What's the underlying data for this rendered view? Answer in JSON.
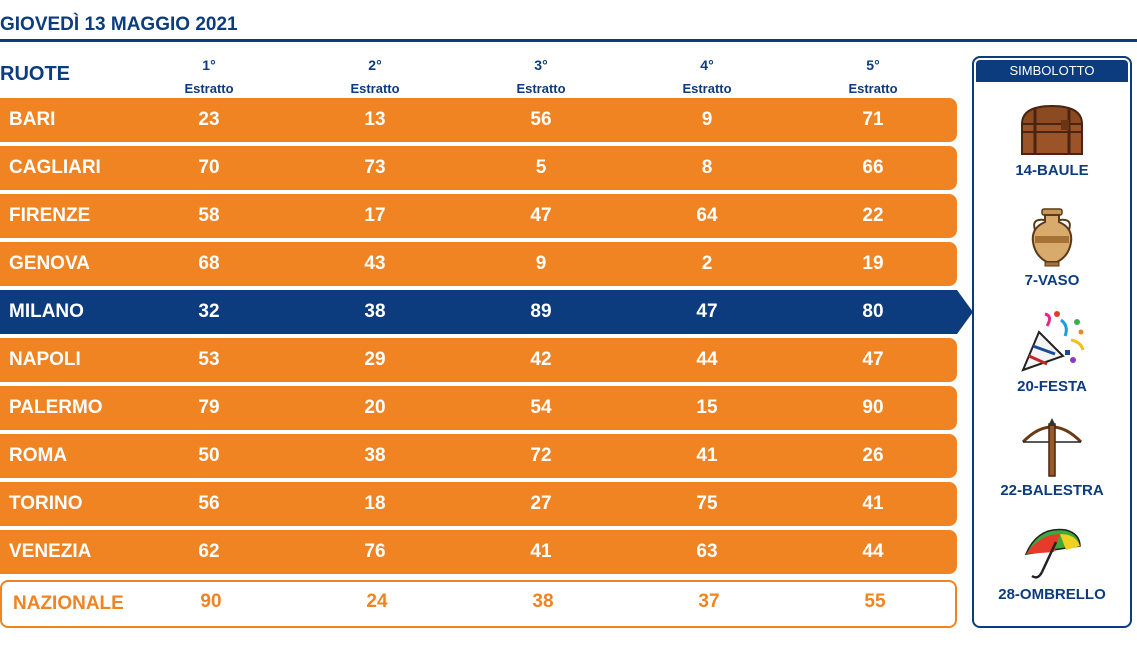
{
  "header": {
    "title": "GIOVEDÌ 13 MAGGIO 2021"
  },
  "table": {
    "ruote_label": "RUOTE",
    "columns": [
      {
        "n": "1°",
        "e": "Estratto"
      },
      {
        "n": "2°",
        "e": "Estratto"
      },
      {
        "n": "3°",
        "e": "Estratto"
      },
      {
        "n": "4°",
        "e": "Estratto"
      },
      {
        "n": "5°",
        "e": "Estratto"
      }
    ],
    "rows": [
      {
        "city": "BARI",
        "values": [
          "23",
          "13",
          "56",
          "9",
          "71"
        ]
      },
      {
        "city": "CAGLIARI",
        "values": [
          "70",
          "73",
          "5",
          "8",
          "66"
        ]
      },
      {
        "city": "FIRENZE",
        "values": [
          "58",
          "17",
          "47",
          "64",
          "22"
        ]
      },
      {
        "city": "GENOVA",
        "values": [
          "68",
          "43",
          "9",
          "2",
          "19"
        ]
      },
      {
        "city": "MILANO",
        "values": [
          "32",
          "38",
          "89",
          "47",
          "80"
        ]
      },
      {
        "city": "NAPOLI",
        "values": [
          "53",
          "29",
          "42",
          "44",
          "47"
        ]
      },
      {
        "city": "PALERMO",
        "values": [
          "79",
          "20",
          "54",
          "15",
          "90"
        ]
      },
      {
        "city": "ROMA",
        "values": [
          "50",
          "38",
          "72",
          "41",
          "26"
        ]
      },
      {
        "city": "TORINO",
        "values": [
          "56",
          "18",
          "27",
          "75",
          "41"
        ]
      },
      {
        "city": "VENEZIA",
        "values": [
          "62",
          "76",
          "41",
          "63",
          "44"
        ]
      },
      {
        "city": "NAZIONALE",
        "values": [
          "90",
          "24",
          "38",
          "37",
          "55"
        ]
      }
    ]
  },
  "simbolotto": {
    "title": "SIMBOLOTTO",
    "items": [
      {
        "label": "14-BAULE",
        "icon": "chest-icon"
      },
      {
        "label": "7-VASO",
        "icon": "vase-icon"
      },
      {
        "label": "20-FESTA",
        "icon": "party-popper-icon"
      },
      {
        "label": "22-BALESTRA",
        "icon": "crossbow-icon"
      },
      {
        "label": "28-OMBRELLO",
        "icon": "umbrella-icon"
      }
    ]
  },
  "colors": {
    "orange": "#f08322",
    "blue": "#0c3c7e",
    "white": "#ffffff"
  }
}
